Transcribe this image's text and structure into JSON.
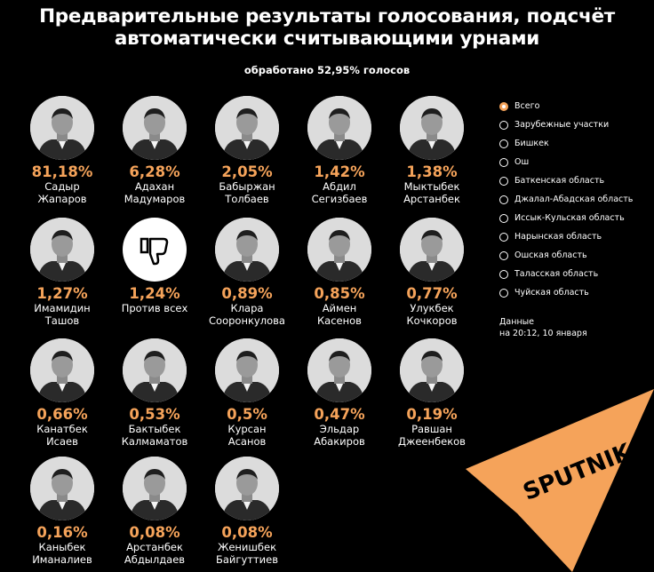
{
  "title_line1": "Предварительные результаты голосования, подсчёт",
  "title_line2": "автоматически считывающими урнами",
  "subtitle": "обработано 52,95% голосов",
  "colors": {
    "background": "#000000",
    "accent": "#f5a35a",
    "text": "#ffffff",
    "logo": "#f5a35a"
  },
  "chart_data": {
    "type": "table",
    "title": "Предварительные результаты голосования, подсчёт автоматически считывающими урнами",
    "subtitle": "обработано 52,95% голосов",
    "candidates": [
      {
        "pct": "81,18%",
        "value": 81.18,
        "first": "Садыр",
        "last": "Жапаров",
        "icon": "person-photo"
      },
      {
        "pct": "6,28%",
        "value": 6.28,
        "first": "Адахан",
        "last": "Мадумаров",
        "icon": "person-photo"
      },
      {
        "pct": "2,05%",
        "value": 2.05,
        "first": "Бабыржан",
        "last": "Толбаев",
        "icon": "person-photo"
      },
      {
        "pct": "1,42%",
        "value": 1.42,
        "first": "Абдил",
        "last": "Сегизбаев",
        "icon": "person-photo"
      },
      {
        "pct": "1,38%",
        "value": 1.38,
        "first": "Мыктыбек",
        "last": "Арстанбек",
        "icon": "person-photo"
      },
      {
        "pct": "1,27%",
        "value": 1.27,
        "first": "Имамидин",
        "last": "Ташов",
        "icon": "person-photo"
      },
      {
        "pct": "1,24%",
        "value": 1.24,
        "first": "Против всех",
        "last": "",
        "icon": "thumbs-down-icon"
      },
      {
        "pct": "0,89%",
        "value": 0.89,
        "first": "Клара",
        "last": "Сооронкулова",
        "icon": "person-photo"
      },
      {
        "pct": "0,85%",
        "value": 0.85,
        "first": "Аймен",
        "last": "Касенов",
        "icon": "person-photo"
      },
      {
        "pct": "0,77%",
        "value": 0.77,
        "first": "Улукбек",
        "last": "Кочкоров",
        "icon": "person-photo"
      },
      {
        "pct": "0,66%",
        "value": 0.66,
        "first": "Канатбек",
        "last": "Исаев",
        "icon": "person-photo"
      },
      {
        "pct": "0,53%",
        "value": 0.53,
        "first": "Бактыбек",
        "last": "Калмаматов",
        "icon": "person-photo"
      },
      {
        "pct": "0,5%",
        "value": 0.5,
        "first": "Курсан",
        "last": "Асанов",
        "icon": "person-photo"
      },
      {
        "pct": "0,47%",
        "value": 0.47,
        "first": "Эльдар",
        "last": "Абакиров",
        "icon": "person-photo"
      },
      {
        "pct": "0,19%",
        "value": 0.19,
        "first": "Равшан",
        "last": "Джеенбеков",
        "icon": "person-photo"
      },
      {
        "pct": "0,16%",
        "value": 0.16,
        "first": "Каныбек",
        "last": "Иманалиев",
        "icon": "person-photo"
      },
      {
        "pct": "0,08%",
        "value": 0.08,
        "first": "Арстанбек",
        "last": "Абдылдаев",
        "icon": "person-photo"
      },
      {
        "pct": "0,08%",
        "value": 0.08,
        "first": "Женишбек",
        "last": "Байгуттиев",
        "icon": "person-photo"
      }
    ]
  },
  "legend": {
    "selected": "Всего",
    "items": [
      "Всего",
      "Зарубежные участки",
      "Бишкек",
      "Ош",
      "Баткенская область",
      "Джалал-Абадская область",
      "Иссык-Кульская область",
      "Нарынская область",
      "Ошская область",
      "Таласская область",
      "Чуйская область"
    ]
  },
  "updated_line1": "Данные",
  "updated_line2": "на 20:12, 10 января",
  "logo_text": "SPUTNIK"
}
